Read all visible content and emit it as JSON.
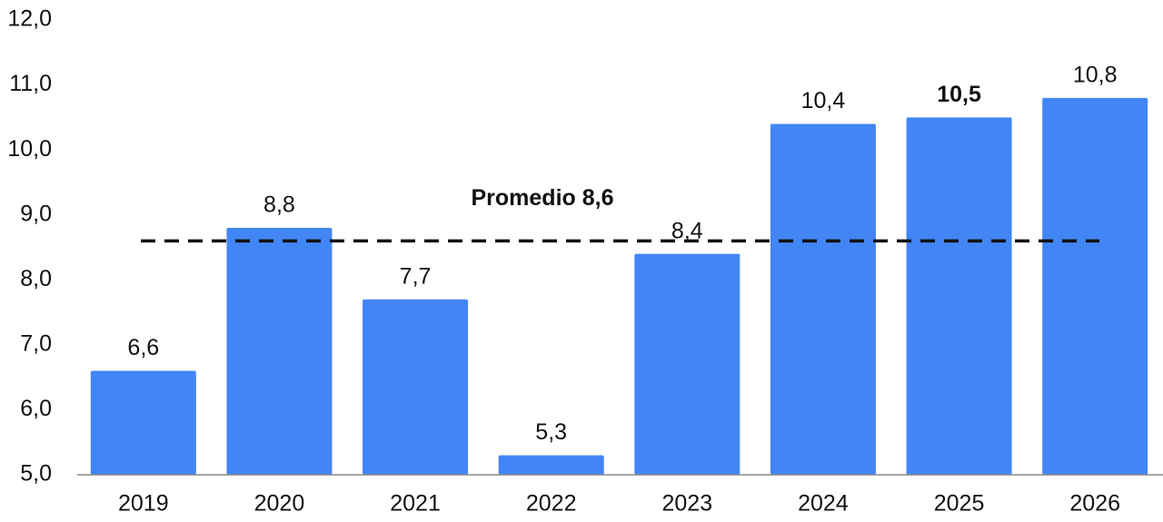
{
  "chart_data": {
    "type": "bar",
    "categories": [
      "2019",
      "2020",
      "2021",
      "2022",
      "2023",
      "2024",
      "2025",
      "2026"
    ],
    "values": [
      6.6,
      8.8,
      7.7,
      5.3,
      8.4,
      10.4,
      10.5,
      10.8
    ],
    "value_labels": [
      "6,6",
      "8,8",
      "7,7",
      "5,3",
      "8,4",
      "10,4",
      "10,5",
      "10,8"
    ],
    "emphasized": "2025",
    "color": "#4285f4",
    "average": {
      "value": 8.6,
      "label": "Promedio 8,6"
    },
    "ylim": [
      5,
      12
    ],
    "yticks": [
      {
        "value": 5,
        "label": "5,0"
      },
      {
        "value": 6,
        "label": "6,0"
      },
      {
        "value": 7,
        "label": "7,0"
      },
      {
        "value": 8,
        "label": "8,0"
      },
      {
        "value": 9,
        "label": "9,0"
      },
      {
        "value": 10,
        "label": "10,0"
      },
      {
        "value": 11,
        "label": "11,0"
      },
      {
        "value": 12,
        "label": "12,0"
      }
    ],
    "grid": false
  }
}
